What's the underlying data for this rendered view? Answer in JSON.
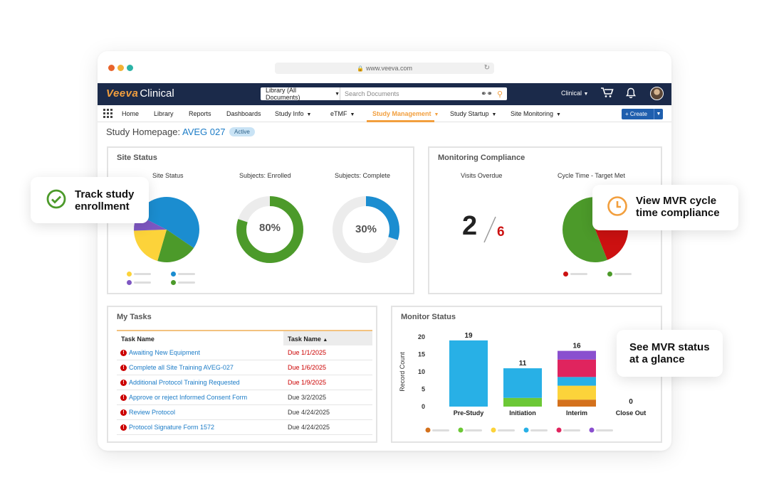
{
  "browser": {
    "url": "www.veeva.com"
  },
  "header": {
    "logo_brand": "Veeva",
    "logo_product": "Clinical",
    "search_scope": "Library (All Documents)",
    "search_placeholder": "Search Documents",
    "vault_menu": "Clinical"
  },
  "nav": {
    "items": [
      {
        "label": "Home"
      },
      {
        "label": "Library"
      },
      {
        "label": "Reports"
      },
      {
        "label": "Dashboards"
      },
      {
        "label": "Study Info"
      },
      {
        "label": "eTMF"
      },
      {
        "label": "Study Management"
      },
      {
        "label": "Study Startup"
      },
      {
        "label": "Site Monitoring"
      }
    ],
    "active": "Study Management",
    "create_label": "+ Create"
  },
  "study": {
    "title_prefix": "Study Homepage:",
    "study_id": "AVEG 027",
    "status": "Active"
  },
  "site_status": {
    "panel_title": "Site Status",
    "chart1_title": "Site Status",
    "chart2_title": "Subjects: Enrolled",
    "chart2_value": "80%",
    "chart3_title": "Subjects: Complete",
    "chart3_value": "30%"
  },
  "monitoring": {
    "panel_title": "Monitoring Compliance",
    "visits_title": "Visits Overdue",
    "visits_overdue": "2",
    "visits_total": "6",
    "cycle_title": "Cycle Time - Target Met"
  },
  "tasks": {
    "panel_title": "My Tasks",
    "col1": "Task Name",
    "col2": "Task Name",
    "rows": [
      {
        "name": "Awaiting New Equipment",
        "due": "Due 1/1/2025",
        "overdue": true
      },
      {
        "name": "Complete all Site Training AVEG-027",
        "due": "Due 1/6/2025",
        "overdue": true
      },
      {
        "name": "Additional Protocol Training Requested",
        "due": "Due 1/9/2025",
        "overdue": true
      },
      {
        "name": "Approve or reject Informed Consent Form",
        "due": "Due 3/2/2025",
        "overdue": false
      },
      {
        "name": "Review Protocol",
        "due": "Due 4/24/2025",
        "overdue": false
      },
      {
        "name": "Protocol Signature Form 1572",
        "due": "Due 4/24/2025",
        "overdue": false
      }
    ]
  },
  "monitor_status": {
    "panel_title": "Monitor Status"
  },
  "callouts": {
    "enrollment": "Track study enrollment",
    "mvr_cycle": "View MVR cycle time compliance",
    "mvr_status": "See MVR status at a glance"
  },
  "colors": {
    "blue": "#1b8dd0",
    "green": "#4c9a2a",
    "yellow": "#fcd33a",
    "purple": "#7e57c2",
    "red": "#cc1111",
    "orange": "#d4711c",
    "sky": "#28b0e6",
    "magenta": "#e0245e",
    "lime": "#6cc836",
    "violet": "#8a4fcf"
  },
  "chart_data": [
    {
      "type": "pie",
      "title": "Site Status",
      "series": [
        {
          "values": [
            52,
            20,
            20,
            8
          ]
        }
      ],
      "colors": [
        "#1b8dd0",
        "#4c9a2a",
        "#fcd33a",
        "#7e57c2"
      ]
    },
    {
      "type": "pie",
      "title": "Subjects: Enrolled",
      "values": [
        80,
        20
      ],
      "label": "80%"
    },
    {
      "type": "pie",
      "title": "Subjects: Complete",
      "values": [
        30,
        70
      ],
      "label": "30%"
    },
    {
      "type": "pie",
      "title": "Cycle Time - Target Met",
      "values": [
        45,
        55
      ],
      "colors": [
        "#cc1111",
        "#4c9a2a"
      ]
    },
    {
      "type": "bar",
      "title": "Monitor Status",
      "ylabel": "Record Count",
      "categories": [
        "Pre-Study",
        "Initiation",
        "Interim",
        "Close Out"
      ],
      "totals": [
        19,
        11,
        16,
        0
      ],
      "ylim": [
        0,
        20
      ],
      "yticks": [
        0,
        5,
        10,
        15,
        20
      ],
      "stacked": true,
      "series": [
        {
          "color": "#d4711c",
          "values": [
            0,
            0,
            2,
            0
          ]
        },
        {
          "color": "#6cc836",
          "values": [
            0,
            2.5,
            0,
            0
          ]
        },
        {
          "color": "#fcd33a",
          "values": [
            0,
            0,
            4,
            0
          ]
        },
        {
          "color": "#28b0e6",
          "values": [
            19,
            8.5,
            2.5,
            0
          ]
        },
        {
          "color": "#e0245e",
          "values": [
            0,
            0,
            5,
            0
          ]
        },
        {
          "color": "#8a4fcf",
          "values": [
            0,
            0,
            2.5,
            0
          ]
        }
      ]
    }
  ]
}
